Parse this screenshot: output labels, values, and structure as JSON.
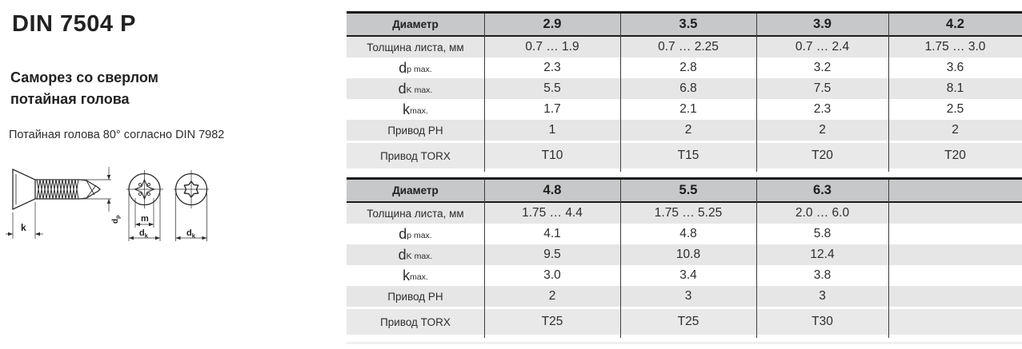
{
  "left_panel": {
    "title": "DIN 7504 P",
    "subtitle_line1": "Саморез со сверлом",
    "subtitle_line2": "потайная голова",
    "note": "Потайная голова 80° согласно DIN 7982",
    "drawing": {
      "k_label": "k",
      "m_label": "m",
      "d_base": "d",
      "dp_sub": "p",
      "dk_sub": "k"
    }
  },
  "tables": [
    {
      "header_label": "Диаметр",
      "diameters": [
        "2.9",
        "3.5",
        "3.9",
        "4.2"
      ],
      "rows": [
        {
          "label": "Толщина листа, мм",
          "sub": "",
          "values": [
            "0.7 … 1.9",
            "0.7 … 2.25",
            "0.7 … 2.4",
            "1.75 … 3.0"
          ]
        },
        {
          "label": "d",
          "sub": "p max.",
          "values": [
            "2.3",
            "2.8",
            "3.2",
            "3.6"
          ]
        },
        {
          "label": "d",
          "sub": "K max.",
          "values": [
            "5.5",
            "6.8",
            "7.5",
            "8.1"
          ]
        },
        {
          "label": "k",
          "sub": "max.",
          "values": [
            "1.7",
            "2.1",
            "2.3",
            "2.5"
          ]
        },
        {
          "label": "Привод PH",
          "sub": "",
          "values": [
            "1",
            "2",
            "2",
            "2"
          ]
        },
        {
          "label": "Привод TORX",
          "sub": "",
          "values": [
            "T10",
            "T15",
            "T20",
            "T20"
          ]
        }
      ]
    },
    {
      "header_label": "Диаметр",
      "diameters": [
        "4.8",
        "5.5",
        "6.3",
        ""
      ],
      "rows": [
        {
          "label": "Толщина листа, мм",
          "sub": "",
          "values": [
            "1.75 … 4.4",
            "1.75 … 5.25",
            "2.0 … 6.0",
            ""
          ]
        },
        {
          "label": "d",
          "sub": "p max.",
          "values": [
            "4.1",
            "4.8",
            "5.8",
            ""
          ]
        },
        {
          "label": "d",
          "sub": "K max.",
          "values": [
            "9.5",
            "10.8",
            "12.4",
            ""
          ]
        },
        {
          "label": "k",
          "sub": "max.",
          "values": [
            "3.0",
            "3.4",
            "3.8",
            ""
          ]
        },
        {
          "label": "Привод PH",
          "sub": "",
          "values": [
            "2",
            "3",
            "3",
            ""
          ]
        },
        {
          "label": "Привод TORX",
          "sub": "",
          "values": [
            "T25",
            "T25",
            "T30",
            ""
          ]
        }
      ]
    }
  ],
  "colors": {
    "header_bg": "#c7c8c9",
    "stripe_bg": "#e6e6e7",
    "last_row_bg": "#e9e9ea",
    "border_dark": "#1c1c1c",
    "text": "#2d2d2d"
  }
}
